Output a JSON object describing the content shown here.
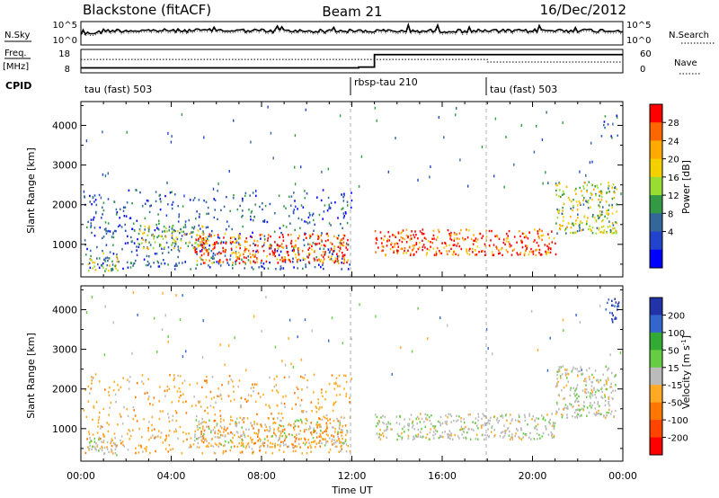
{
  "chart_data": {
    "type": "heatmap",
    "header": {
      "radar": "Blackstone (fitACF)",
      "beam": "Beam 21",
      "date": "16/Dec/2012"
    },
    "noise_panel": {
      "left_label": "N.Sky",
      "right_label": "N.Search",
      "yticks_left": [
        "10^5",
        "10^0"
      ],
      "yticks_right": [
        "10^5",
        "10^0"
      ]
    },
    "freq_panel": {
      "left_label_1": "Freq.",
      "left_label_2": "[MHz]",
      "right_label": "Nave",
      "yticks_left": [
        "18",
        "8"
      ],
      "yticks_right": [
        "60",
        "0"
      ],
      "freq_steps": [
        {
          "t": 0.0,
          "mhz": 9.2
        },
        {
          "t": 12.3,
          "mhz": 9.6
        },
        {
          "t": 13.0,
          "mhz": 16.2
        },
        {
          "t": 24.0,
          "mhz": 16.2
        }
      ],
      "nave_steps": [
        {
          "t": 0.0,
          "n": 38
        },
        {
          "t": 13.0,
          "n": 38
        },
        {
          "t": 18.0,
          "n": 30
        },
        {
          "t": 24.0,
          "n": 30
        }
      ]
    },
    "cpid": {
      "label": "CPID",
      "segments": [
        {
          "t_start": 0.0,
          "name": "tau (fast) 503"
        },
        {
          "t_start": 12.0,
          "name": "rbsp-tau 210"
        },
        {
          "t_start": 18.0,
          "name": "tau (fast) 503"
        }
      ]
    },
    "x_axis": {
      "label": "Time UT",
      "range_hours": [
        0,
        24
      ],
      "ticks": [
        "00:00",
        "04:00",
        "08:00",
        "12:00",
        "16:00",
        "20:00",
        "00:00"
      ],
      "tick_hours": [
        0,
        4,
        8,
        12,
        16,
        20,
        24
      ]
    },
    "y_axis": {
      "label": "Slant Range [km]",
      "range_km": [
        180,
        4600
      ],
      "ticks": [
        1000,
        2000,
        3000,
        4000
      ]
    },
    "power_panel": {
      "colorbar_label": "Power [dB]",
      "colorbar_ticks": [
        "28",
        "24",
        "20",
        "16",
        "12",
        "8",
        "4"
      ],
      "colorbar_colors": [
        "#ff0000",
        "#ff6600",
        "#ffaa00",
        "#f5d000",
        "#99dd33",
        "#339944",
        "#336699",
        "#2244cc",
        "#0000ff"
      ],
      "scatter_regions": [
        {
          "t_start": 0.1,
          "t_end": 12.0,
          "r_min": 400,
          "r_max": 2400,
          "level": "low"
        },
        {
          "t_start": 0.3,
          "t_end": 1.6,
          "r_min": 350,
          "r_max": 800,
          "level": "medium"
        },
        {
          "t_start": 2.5,
          "t_end": 5.5,
          "r_min": 900,
          "r_max": 1500,
          "level": "medium"
        },
        {
          "t_start": 5.0,
          "t_end": 11.8,
          "r_min": 550,
          "r_max": 1300,
          "level": "high"
        },
        {
          "t_start": 13.0,
          "t_end": 21.0,
          "r_min": 750,
          "r_max": 1400,
          "level": "high"
        },
        {
          "t_start": 21.0,
          "t_end": 23.7,
          "r_min": 1300,
          "r_max": 2600,
          "level": "medium"
        },
        {
          "t_start": 23.0,
          "t_end": 23.8,
          "r_min": 3700,
          "r_max": 4300,
          "level": "low"
        }
      ]
    },
    "velocity_panel": {
      "colorbar_label": "Velocity [m s^-1]",
      "colorbar_ticks": [
        "200",
        "100",
        "50",
        "15",
        "-15",
        "-50",
        "-100",
        "-200"
      ],
      "colorbar_colors": [
        "#2233aa",
        "#3366cc",
        "#33aa33",
        "#66cc44",
        "#bbbbbb",
        "#ffaa22",
        "#ff7700",
        "#ff4400",
        "#ff0000"
      ],
      "scatter_regions": [
        {
          "t_start": 0.1,
          "t_end": 12.0,
          "r_min": 400,
          "r_max": 2400,
          "v_class": "orange"
        },
        {
          "t_start": 0.3,
          "t_end": 1.6,
          "r_min": 350,
          "r_max": 800,
          "v_class": "grey"
        },
        {
          "t_start": 5.0,
          "t_end": 11.8,
          "r_min": 550,
          "r_max": 1300,
          "v_class": "mixed"
        },
        {
          "t_start": 13.0,
          "t_end": 21.0,
          "r_min": 750,
          "r_max": 1400,
          "v_class": "grey"
        },
        {
          "t_start": 21.0,
          "t_end": 23.7,
          "r_min": 1300,
          "r_max": 2600,
          "v_class": "grey"
        },
        {
          "t_start": 23.2,
          "t_end": 23.8,
          "r_min": 3700,
          "r_max": 4300,
          "v_class": "blue"
        }
      ]
    }
  }
}
